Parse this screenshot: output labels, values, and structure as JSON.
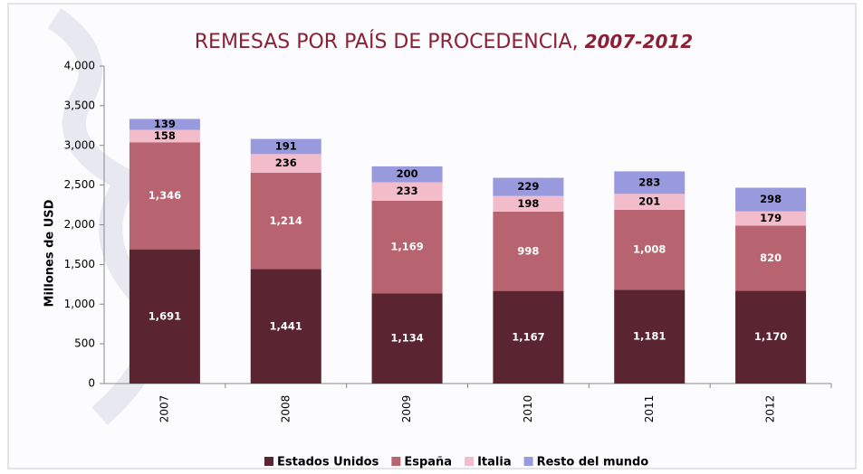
{
  "chart_data": {
    "type": "stacked_bar",
    "title": "REMESAS POR PAÍS DE PROCEDENCIA,",
    "title_years": "2007-2012",
    "y_label": "Millones de USD",
    "categories": [
      "2007",
      "2008",
      "2009",
      "2010",
      "2011",
      "2012"
    ],
    "series": [
      {
        "name": "Estados Unidos",
        "color": "#5a2430",
        "values": [
          1691,
          1441,
          1134,
          1167,
          1181,
          1170
        ],
        "value_labels": [
          "1,691",
          "1,441",
          "1,134",
          "1,167",
          "1,181",
          "1,170"
        ]
      },
      {
        "name": "España",
        "color": "#b86470",
        "values": [
          1346,
          1214,
          1169,
          998,
          1008,
          820
        ],
        "value_labels": [
          "1,346",
          "1,214",
          "1,169",
          "998",
          "1,008",
          "820"
        ]
      },
      {
        "name": "Italia",
        "color": "#f2bccb",
        "values": [
          158,
          236,
          233,
          198,
          201,
          179
        ],
        "value_labels": [
          "158",
          "236",
          "233",
          "198",
          "201",
          "179"
        ]
      },
      {
        "name": "Resto del mundo",
        "color": "#9999dd",
        "values": [
          139,
          191,
          200,
          229,
          283,
          298
        ],
        "value_labels": [
          "139",
          "191",
          "200",
          "229",
          "283",
          "298"
        ]
      }
    ],
    "ylim": [
      0,
      4000
    ],
    "yticks": [
      0,
      500,
      {
        "value": 1000,
        "label": "1,000"
      },
      {
        "value": 1500,
        "label": "1,500"
      },
      {
        "value": 2000,
        "label": "2,000"
      },
      {
        "value": 2500,
        "label": "2,500"
      },
      {
        "value": 3000,
        "label": "3,000"
      },
      {
        "value": 3500,
        "label": "3,500"
      },
      {
        "value": 4000,
        "label": "4,000"
      }
    ],
    "legend": "bottom"
  }
}
